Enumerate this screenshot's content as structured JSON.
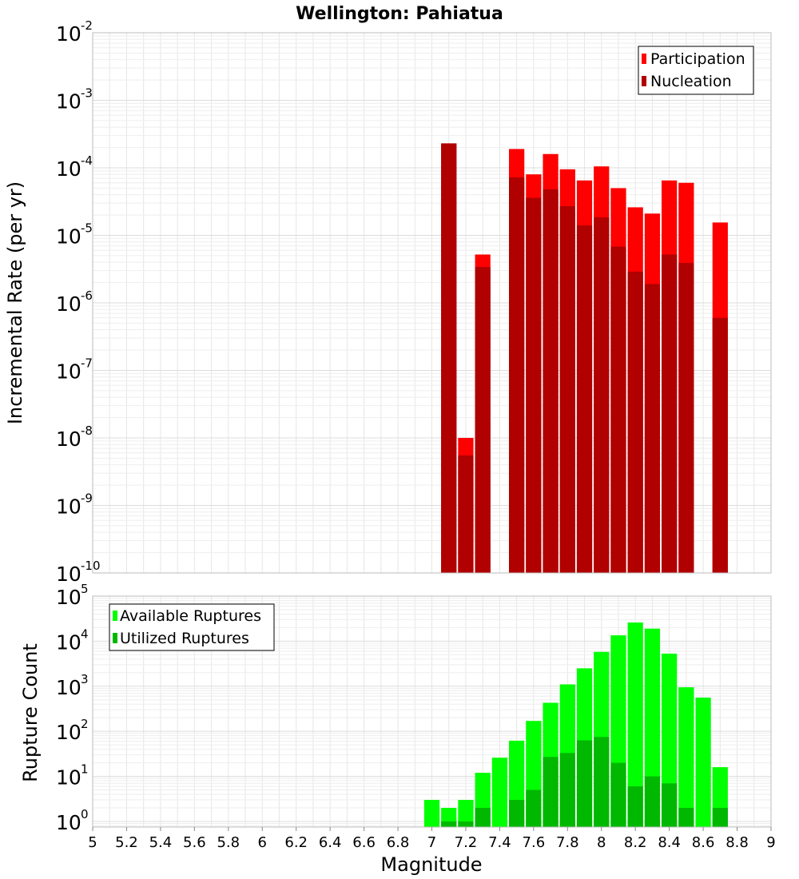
{
  "title": "Wellington: Pahiatua",
  "colors": {
    "participation": "#ff0000",
    "nucleation": "#b00000",
    "available": "#00ff00",
    "utilized": "#00b800",
    "grid": "#e6e6e6",
    "frame": "#bbbbbb"
  },
  "chart_data": [
    {
      "type": "bar",
      "ylabel": "Incremental Rate (per yr)",
      "yscale": "log",
      "ylim": [
        1e-10,
        0.01
      ],
      "xlim": [
        5,
        9
      ],
      "grid": true,
      "legend_position": "top-right",
      "yticks": [
        {
          "base": "10",
          "exp": "-10"
        },
        {
          "base": "10",
          "exp": "-9"
        },
        {
          "base": "10",
          "exp": "-8"
        },
        {
          "base": "10",
          "exp": "-7"
        },
        {
          "base": "10",
          "exp": "-6"
        },
        {
          "base": "10",
          "exp": "-5"
        },
        {
          "base": "10",
          "exp": "-4"
        },
        {
          "base": "10",
          "exp": "-3"
        },
        {
          "base": "10",
          "exp": "-2"
        }
      ],
      "x": [
        7.1,
        7.2,
        7.3,
        7.5,
        7.6,
        7.7,
        7.8,
        7.9,
        8.0,
        8.1,
        8.2,
        8.3,
        8.4,
        8.5,
        8.7
      ],
      "series": [
        {
          "name": "Participation",
          "values": [
            0.00023,
            1e-08,
            5.2e-06,
            0.00019,
            8e-05,
            0.00016,
            9.5e-05,
            6.5e-05,
            0.000105,
            5e-05,
            2.6e-05,
            2.1e-05,
            6.5e-05,
            6e-05,
            1.55e-05
          ]
        },
        {
          "name": "Nucleation",
          "values": [
            0.00023,
            5.5e-09,
            3.4e-06,
            7.2e-05,
            3.6e-05,
            4.8e-05,
            2.7e-05,
            1.4e-05,
            1.85e-05,
            6.8e-06,
            2.9e-06,
            1.9e-06,
            5.2e-06,
            3.9e-06,
            6e-07
          ]
        }
      ]
    },
    {
      "type": "bar",
      "ylabel": "Rupture Count",
      "xlabel": "Magnitude",
      "yscale": "log",
      "ylim": [
        0.75,
        100000.0
      ],
      "xlim": [
        5,
        9
      ],
      "grid": true,
      "legend_position": "top-left",
      "yticks": [
        {
          "base": "10",
          "exp": "0"
        },
        {
          "base": "10",
          "exp": "1"
        },
        {
          "base": "10",
          "exp": "2"
        },
        {
          "base": "10",
          "exp": "3"
        },
        {
          "base": "10",
          "exp": "4"
        },
        {
          "base": "10",
          "exp": "5"
        }
      ],
      "xticks": [
        "5",
        "5.2",
        "5.4",
        "5.6",
        "5.8",
        "6",
        "6.2",
        "6.4",
        "6.6",
        "6.8",
        "7",
        "7.2",
        "7.4",
        "7.6",
        "7.8",
        "8",
        "8.2",
        "8.4",
        "8.6",
        "8.8",
        "9"
      ],
      "x": [
        7.0,
        7.1,
        7.2,
        7.3,
        7.4,
        7.5,
        7.6,
        7.7,
        7.8,
        7.9,
        8.0,
        8.1,
        8.2,
        8.3,
        8.4,
        8.5,
        8.6,
        8.7
      ],
      "series": [
        {
          "name": "Available Ruptures",
          "values": [
            3,
            2,
            3,
            12,
            26,
            62,
            170,
            430,
            1100,
            2500,
            5800,
            13500,
            26000,
            19000,
            5300,
            950,
            560,
            16
          ]
        },
        {
          "name": "Utilized Ruptures",
          "values": [
            null,
            1,
            1,
            2,
            null,
            3,
            5,
            27,
            33,
            63,
            75,
            20,
            6,
            10,
            7,
            2,
            null,
            2
          ]
        }
      ]
    }
  ]
}
